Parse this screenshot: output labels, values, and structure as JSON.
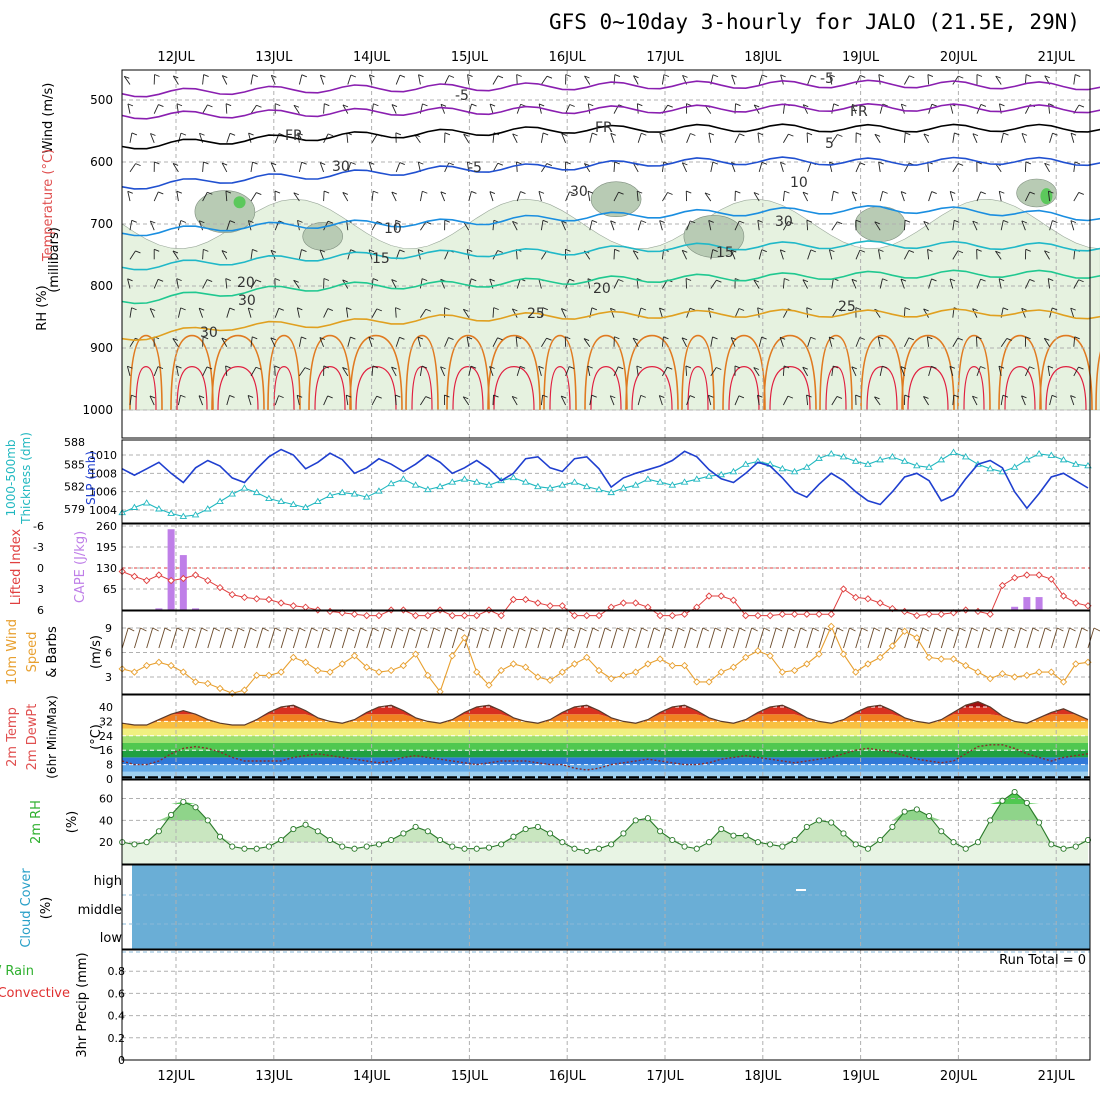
{
  "title": "GFS 0~10day 3-hourly for JALO (21.5E, 29N)",
  "date_labels": [
    "12JUL",
    "13JUL",
    "14JUL",
    "15JUL",
    "16JUL",
    "17JUL",
    "18JUL",
    "19JUL",
    "20JUL",
    "21JUL"
  ],
  "run_total_text": "Run Total = 0",
  "colors": {
    "grid": "#b0b0b0",
    "slp": "#1f3fcf",
    "thickness": "#22b8c0",
    "cape": "#bf7fe8",
    "lifted": "#e04040",
    "wind10m": "#e8a030",
    "rh": "#2f9a2f",
    "cloud": "#6aaed6",
    "templine": "#8b4513"
  },
  "chart_data": [
    {
      "type": "heatmap",
      "panel": "upper-air",
      "ylabel_parts": [
        "Wind (m/s)",
        "Temperature (°C)",
        "RH (%)",
        "(millibars)"
      ],
      "yticks": [
        500,
        600,
        700,
        800,
        900,
        1000
      ],
      "ylim": [
        1000,
        450
      ],
      "isotherm_labels": [
        "-5",
        "-5",
        "FR",
        "FR",
        "FR",
        "-5",
        "5",
        "10",
        "10",
        "15",
        "15",
        "20",
        "20",
        "25",
        "25",
        "30",
        "30",
        "30",
        "30",
        "30"
      ],
      "isotherms": [
        {
          "label": "-5",
          "color": "#8a1fb0",
          "y": [
            490,
            485,
            482,
            480,
            478,
            476,
            475,
            474,
            476,
            478
          ]
        },
        {
          "label": "-5",
          "color": "#8a1fb0",
          "y": [
            525,
            523,
            520,
            518,
            516,
            515,
            513,
            512,
            513,
            515
          ]
        },
        {
          "label": "FR",
          "color": "#000000",
          "y": [
            575,
            565,
            558,
            553,
            548,
            546,
            545,
            546,
            545,
            546
          ]
        },
        {
          "label": "5",
          "color": "#2050d0",
          "y": [
            640,
            628,
            620,
            612,
            608,
            600,
            598,
            600,
            598,
            600
          ]
        },
        {
          "label": "10",
          "color": "#1a8ee0",
          "y": [
            715,
            705,
            700,
            698,
            690,
            684,
            680,
            676,
            680,
            690
          ]
        },
        {
          "label": "15",
          "color": "#20b8c8",
          "y": [
            770,
            760,
            752,
            748,
            745,
            738,
            735,
            733,
            735,
            738
          ]
        },
        {
          "label": "20",
          "color": "#20c890",
          "y": [
            825,
            810,
            800,
            798,
            792,
            788,
            785,
            782,
            780,
            782
          ]
        },
        {
          "label": "25",
          "color": "#e0a020",
          "y": [
            885,
            865,
            860,
            852,
            848,
            846,
            844,
            845,
            842,
            848
          ]
        }
      ],
      "rh_patches": [
        {
          "day": 0.5,
          "p": 680,
          "size": 60
        },
        {
          "day": 1.5,
          "p": 720,
          "size": 40
        },
        {
          "day": 4.5,
          "p": 660,
          "size": 50
        },
        {
          "day": 5.5,
          "p": 720,
          "size": 60
        },
        {
          "day": 7.2,
          "p": 700,
          "size": 50
        },
        {
          "day": 8.8,
          "p": 650,
          "size": 40
        }
      ]
    },
    {
      "type": "line",
      "panel": "slp-thickness",
      "ylabel_parts": [
        "1000-500mb",
        "Thickness (dm)",
        "SLP (mb)"
      ],
      "slp_ticks": [
        1004,
        1006,
        1008,
        1010
      ],
      "thickness_ticks": [
        579,
        582,
        585,
        588
      ],
      "series": [
        {
          "name": "SLP (mb)",
          "values": [
            1008.5,
            1007.8,
            1008.5,
            1009.2,
            1008.0,
            1007.0,
            1008.6,
            1009.4,
            1008.8,
            1007.5,
            1007.0,
            1008.5,
            1009.8,
            1010.6,
            1010.0,
            1008.5,
            1009.2,
            1010.2,
            1009.5,
            1008.0,
            1008.6,
            1009.6,
            1009.0,
            1008.2,
            1009.0,
            1010.0,
            1009.2,
            1008.0,
            1008.6,
            1009.4,
            1008.5,
            1007.2,
            1008.0,
            1009.6,
            1009.8,
            1008.6,
            1008.2,
            1009.6,
            1009.8,
            1008.5,
            1006.5,
            1007.5,
            1008.0,
            1008.4,
            1008.8,
            1009.4,
            1010.4,
            1009.8,
            1008.4,
            1007.4,
            1007.0,
            1008.0,
            1009.2,
            1008.8,
            1007.5,
            1006.0,
            1005.4,
            1006.8,
            1008.0,
            1007.2,
            1006.0,
            1005.0,
            1004.6,
            1006.0,
            1007.6,
            1008.0,
            1007.2,
            1005.0,
            1005.6,
            1007.4,
            1009.0,
            1009.4,
            1008.6,
            1006.0,
            1004.2,
            1005.8,
            1007.6,
            1008.0,
            1007.2,
            1006.4
          ]
        },
        {
          "name": "1000-500mb Thickness (dm)",
          "values": [
            578.5,
            579.2,
            579.8,
            579.0,
            578.4,
            578.0,
            578.2,
            579.0,
            580.0,
            581.0,
            581.8,
            581.2,
            580.4,
            580.0,
            579.6,
            579.2,
            580.0,
            580.8,
            581.2,
            581.0,
            580.6,
            581.4,
            582.4,
            583.0,
            582.2,
            581.6,
            582.0,
            582.6,
            583.0,
            582.6,
            582.2,
            582.8,
            583.2,
            582.6,
            582.0,
            581.8,
            582.2,
            582.6,
            582.0,
            581.6,
            581.2,
            581.8,
            582.2,
            583.0,
            582.6,
            582.2,
            582.6,
            583.0,
            583.4,
            583.6,
            584.0,
            585.0,
            585.4,
            585.0,
            584.4,
            584.0,
            584.6,
            585.8,
            586.4,
            586.0,
            585.4,
            585.0,
            585.6,
            586.0,
            585.4,
            584.8,
            584.6,
            585.6,
            586.6,
            586.0,
            585.0,
            584.4,
            584.0,
            584.6,
            585.6,
            586.4,
            586.2,
            585.6,
            585.0,
            584.8
          ]
        }
      ]
    },
    {
      "type": "bar",
      "panel": "cape-lifted",
      "ylabel_parts": [
        "Lifted Index",
        "CAPE (J/kg)"
      ],
      "cape_ticks": [
        65,
        130,
        195,
        260
      ],
      "lifted_ticks": [
        "6",
        "3",
        "0",
        "-3",
        "-6"
      ],
      "series": [
        {
          "name": "CAPE (J/kg)",
          "values": [
            0,
            0,
            0,
            5,
            250,
            170,
            5,
            0,
            0,
            0,
            0,
            0,
            0,
            0,
            0,
            0,
            0,
            0,
            0,
            0,
            0,
            0,
            0,
            0,
            0,
            0,
            0,
            0,
            0,
            0,
            0,
            0,
            0,
            0,
            0,
            0,
            0,
            0,
            0,
            0,
            0,
            0,
            0,
            0,
            0,
            0,
            0,
            0,
            0,
            0,
            0,
            0,
            0,
            0,
            0,
            0,
            0,
            0,
            0,
            0,
            0,
            0,
            0,
            0,
            0,
            0,
            0,
            0,
            0,
            0,
            0,
            0,
            0,
            10,
            40,
            40,
            0,
            0,
            0,
            0
          ]
        },
        {
          "name": "Lifted Index",
          "values": [
            -0.5,
            -1.2,
            -1.8,
            -1.0,
            -1.8,
            -1.5,
            -1.0,
            -1.8,
            -2.8,
            -3.8,
            -4.2,
            -4.4,
            -4.5,
            -5.0,
            -5.4,
            -5.6,
            -6.0,
            -6.2,
            -6.4,
            -6.6,
            -6.8,
            -6.8,
            -6.0,
            -6.0,
            -6.8,
            -6.8,
            -6.0,
            -6.8,
            -6.8,
            -6.8,
            -6.0,
            -6.8,
            -4.5,
            -4.5,
            -5.0,
            -5.4,
            -5.4,
            -6.8,
            -6.8,
            -6.8,
            -5.6,
            -5.0,
            -5.0,
            -5.6,
            -6.8,
            -6.8,
            -6.6,
            -5.6,
            -4.0,
            -4.0,
            -4.6,
            -6.8,
            -6.8,
            -6.8,
            -6.6,
            -6.6,
            -6.6,
            -6.6,
            -6.6,
            -3.0,
            -4.2,
            -4.4,
            -5.0,
            -5.8,
            -6.2,
            -6.8,
            -6.6,
            -6.6,
            -6.4,
            -6.0,
            -6.2,
            -6.6,
            -2.5,
            -1.4,
            -1.0,
            -1.0,
            -1.6,
            -4.0,
            -5.0,
            -5.4
          ]
        }
      ]
    },
    {
      "type": "line",
      "panel": "wind10m",
      "ylabel_parts": [
        "10m Wind",
        "Speed",
        "& Barbs",
        "(m/s)"
      ],
      "yticks": [
        3,
        6,
        9
      ],
      "series": [
        {
          "name": "10m Wind Speed (m/s)",
          "values": [
            4.0,
            3.6,
            4.4,
            4.8,
            4.4,
            3.6,
            2.4,
            2.2,
            1.6,
            1.0,
            1.4,
            3.2,
            3.2,
            3.6,
            5.4,
            4.8,
            3.8,
            3.6,
            4.6,
            5.6,
            4.2,
            3.6,
            3.8,
            4.4,
            5.8,
            3.2,
            1.2,
            5.6,
            7.8,
            3.6,
            2.0,
            3.8,
            4.6,
            4.2,
            3.0,
            2.6,
            3.6,
            4.6,
            5.4,
            3.8,
            2.8,
            3.2,
            3.6,
            4.6,
            5.2,
            4.4,
            4.4,
            2.4,
            2.4,
            3.6,
            4.2,
            5.4,
            6.2,
            5.6,
            3.6,
            3.8,
            4.6,
            5.8,
            9.2,
            5.8,
            3.6,
            4.6,
            5.4,
            6.8,
            8.6,
            7.8,
            5.4,
            5.2,
            5.2,
            4.4,
            3.6,
            2.8,
            3.4,
            3.0,
            3.2,
            3.6,
            3.6,
            2.4,
            4.6,
            4.8
          ]
        }
      ]
    },
    {
      "type": "area",
      "panel": "temp2m",
      "ylabel_parts": [
        "2m Temp",
        "2m DewPt",
        "(6hr Min/Max)",
        "(°C)"
      ],
      "yticks": [
        0,
        8,
        16,
        24,
        32,
        40
      ],
      "series": [
        {
          "name": "2m Temp (°C)",
          "values": [
            31,
            30,
            30,
            33,
            36,
            38,
            36,
            33,
            31,
            30,
            30,
            33,
            37,
            40,
            41,
            38,
            34,
            32,
            31,
            33,
            37,
            40,
            41,
            38,
            34,
            32,
            31,
            33,
            37,
            40,
            41,
            38,
            34,
            32,
            31,
            33,
            37,
            40,
            41,
            38,
            34,
            32,
            31,
            33,
            37,
            40,
            41,
            38,
            34,
            32,
            31,
            33,
            37,
            40,
            41,
            38,
            34,
            32,
            31,
            33,
            37,
            40,
            41,
            38,
            34,
            32,
            31,
            33,
            37,
            41,
            43,
            40,
            35,
            32,
            31,
            34,
            37,
            39,
            36,
            33
          ]
        },
        {
          "name": "2m DewPt (°C)",
          "values": [
            10,
            8,
            8,
            10,
            14,
            17,
            18,
            17,
            15,
            12,
            10,
            10,
            10,
            10,
            12,
            13,
            14,
            13,
            12,
            11,
            10,
            9,
            10,
            12,
            13,
            12,
            11,
            10,
            9,
            8,
            9,
            10,
            10,
            10,
            9,
            8,
            8,
            6,
            5,
            6,
            8,
            9,
            10,
            11,
            10,
            9,
            8,
            8,
            9,
            11,
            12,
            13,
            12,
            11,
            10,
            9,
            10,
            11,
            12,
            14,
            16,
            17,
            16,
            15,
            13,
            11,
            10,
            9,
            10,
            14,
            18,
            19,
            19,
            17,
            14,
            12,
            10,
            12,
            13,
            14
          ]
        }
      ]
    },
    {
      "type": "area",
      "panel": "rh2m",
      "ylabel_parts": [
        "2m RH",
        "(%)"
      ],
      "yticks": [
        20,
        40,
        60
      ],
      "series": [
        {
          "name": "2m RH (%)",
          "values": [
            20,
            18,
            20,
            30,
            45,
            57,
            52,
            40,
            25,
            16,
            14,
            14,
            16,
            22,
            32,
            36,
            30,
            22,
            16,
            14,
            16,
            18,
            22,
            28,
            34,
            30,
            22,
            16,
            14,
            14,
            15,
            18,
            25,
            32,
            34,
            28,
            20,
            14,
            12,
            14,
            18,
            28,
            40,
            42,
            30,
            22,
            16,
            14,
            20,
            32,
            26,
            26,
            20,
            18,
            16,
            22,
            34,
            40,
            38,
            28,
            18,
            14,
            22,
            34,
            48,
            50,
            44,
            30,
            20,
            14,
            20,
            40,
            58,
            66,
            56,
            38,
            18,
            14,
            16,
            22
          ]
        }
      ]
    },
    {
      "type": "heatmap",
      "panel": "cloud",
      "ylabel_parts": [
        "Cloud Cover",
        "(%)"
      ],
      "row_labels": [
        "high",
        "middle",
        "low"
      ]
    },
    {
      "type": "bar",
      "panel": "precip",
      "ylabel_parts": [
        "Total / Rain",
        "Convective",
        "3hr Precip (mm)"
      ],
      "yticks": [
        "0",
        "0.2",
        "0.4",
        "0.6",
        "0.8"
      ],
      "ylim": [
        0,
        1
      ],
      "series": [
        {
          "name": "Total / Rain",
          "values": []
        },
        {
          "name": "Convective",
          "values": []
        }
      ]
    }
  ]
}
